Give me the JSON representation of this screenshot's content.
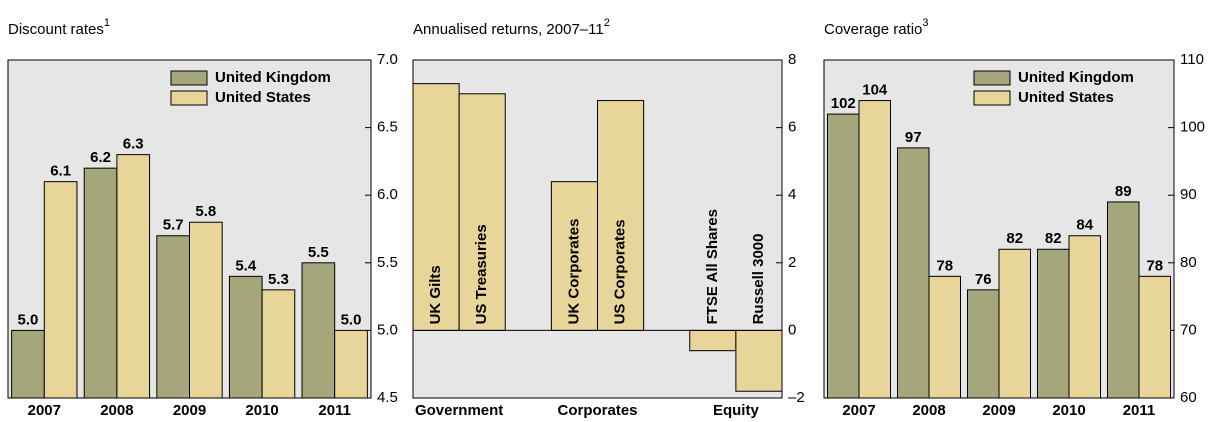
{
  "chart_data": [
    {
      "type": "bar",
      "title": "Discount rates",
      "title_note": "1",
      "categories": [
        "2007",
        "2008",
        "2009",
        "2010",
        "2011"
      ],
      "series": [
        {
          "name": "United Kingdom",
          "color": "#a6a67c",
          "values": [
            5.0,
            6.2,
            5.7,
            5.4,
            5.5
          ],
          "value_labels": [
            "5.0",
            "6.2",
            "5.7",
            "5.4",
            "5.5"
          ]
        },
        {
          "name": "United States",
          "color": "#e8d59a",
          "values": [
            6.1,
            6.3,
            5.8,
            5.3,
            5.0
          ],
          "value_labels": [
            "6.1",
            "6.3",
            "5.8",
            "5.3",
            "5.0"
          ]
        }
      ],
      "ylim": [
        4.5,
        7.0
      ],
      "yticks": [
        4.5,
        {
          "value": 5.0,
          "label": "5.0"
        },
        5.5,
        {
          "value": 6.0,
          "label": "6.0"
        },
        6.5,
        {
          "value": 7.0,
          "label": "7.0"
        }
      ],
      "legend": "top-right"
    },
    {
      "type": "grouped-bar",
      "title": "Annualised returns, 2007–11",
      "title_note": "2",
      "categories": [
        "UK Gilts",
        "US Treasuries",
        "UK Corporates",
        "US Corporates",
        "FTSE All Shares",
        "Russell 3000"
      ],
      "groups": [
        "Government",
        "Corporates",
        "Equity"
      ],
      "values": [
        7.3,
        7.0,
        4.4,
        6.8,
        -0.6,
        -1.8
      ],
      "color": "#e8d59a",
      "ylim": [
        -2,
        8
      ],
      "yticks": [
        {
          "value": -2,
          "label": "–2"
        },
        0,
        2,
        4,
        6,
        8
      ]
    },
    {
      "type": "bar",
      "title": "Coverage ratio",
      "title_note": "3",
      "categories": [
        "2007",
        "2008",
        "2009",
        "2010",
        "2011"
      ],
      "series": [
        {
          "name": "United Kingdom",
          "color": "#a6a67c",
          "values": [
            102,
            97,
            76,
            82,
            89
          ]
        },
        {
          "name": "United States",
          "color": "#e8d59a",
          "values": [
            104,
            78,
            82,
            84,
            78
          ]
        }
      ],
      "ylim": [
        60,
        110
      ],
      "yticks": [
        60,
        70,
        80,
        90,
        100,
        110
      ],
      "legend": "top-right"
    }
  ]
}
